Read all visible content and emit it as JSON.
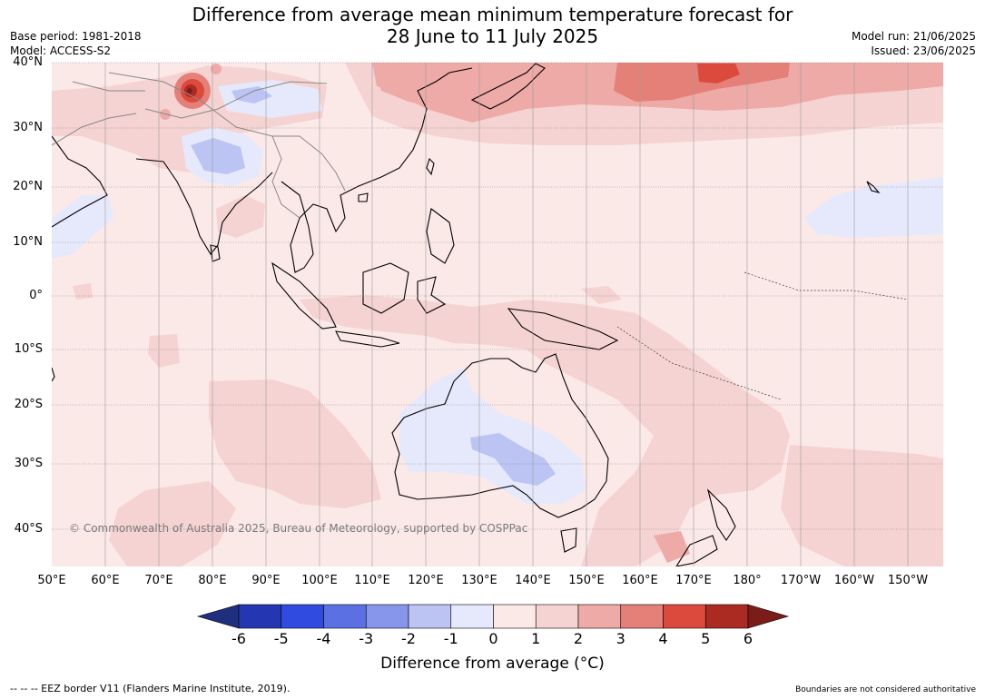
{
  "title": {
    "line1": "Difference from average mean minimum temperature forecast for",
    "line2": "28 June to 11 July 2025"
  },
  "meta": {
    "base_period": "Base period: 1981-2018",
    "model": "Model: ACCESS-S2",
    "model_run": "Model run: 21/06/2025",
    "issued": "Issued: 23/06/2025"
  },
  "map": {
    "lat_labels": [
      "40°N",
      "30°N",
      "20°N",
      "10°N",
      "0°",
      "10°S",
      "20°S",
      "30°S",
      "40°S"
    ],
    "lon_labels": [
      "50°E",
      "60°E",
      "70°E",
      "80°E",
      "90°E",
      "100°E",
      "110°E",
      "120°E",
      "130°E",
      "140°E",
      "150°E",
      "160°E",
      "170°E",
      "180°",
      "170°W",
      "160°W",
      "150°W"
    ],
    "copyright": "© Commonwealth of Australia 2025, Bureau of Meteorology, supported by COSPPac"
  },
  "colorbar": {
    "ticks": [
      "-6",
      "-5",
      "-4",
      "-3",
      "-2",
      "-1",
      "0",
      "1",
      "2",
      "3",
      "4",
      "5",
      "6"
    ],
    "colors": [
      "#1f2f7e",
      "#2536b2",
      "#2f4be0",
      "#5b71e3",
      "#8795ea",
      "#bcc4f3",
      "#e6e9fb",
      "#fbe9e8",
      "#f5d3d2",
      "#eeaaa6",
      "#e58078",
      "#dc4a3d",
      "#ab2a22",
      "#7a1d18"
    ],
    "label": "Difference from average (°C)"
  },
  "footer": {
    "eez": "--  --  -- EEZ border V11 (Flanders Marine Institute, 2019).",
    "boundaries": "Boundaries are not considered authoritative"
  }
}
